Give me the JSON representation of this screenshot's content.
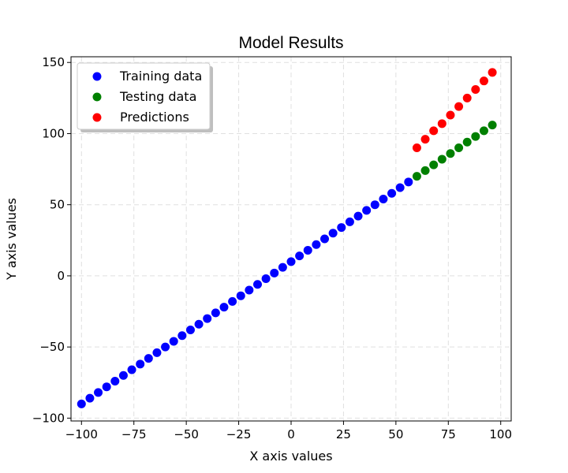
{
  "chart_data": {
    "type": "scatter",
    "title": "Model Results",
    "xlabel": "X axis values",
    "ylabel": "Y axis values",
    "xlim": [
      -105,
      105
    ],
    "ylim": [
      -102,
      154
    ],
    "xticks": [
      -100,
      -75,
      -50,
      -25,
      0,
      25,
      50,
      75,
      100
    ],
    "yticks": [
      -100,
      -50,
      0,
      50,
      100,
      150
    ],
    "xtick_labels": [
      "−100",
      "−75",
      "−50",
      "−25",
      "0",
      "25",
      "50",
      "75",
      "100"
    ],
    "ytick_labels": [
      "−100",
      "−50",
      "0",
      "50",
      "100",
      "150"
    ],
    "grid": true,
    "legend": "top-left",
    "series": [
      {
        "name": "Training data",
        "color": "#0000ff",
        "x": [
          -100,
          -96,
          -92,
          -88,
          -84,
          -80,
          -76,
          -72,
          -68,
          -64,
          -60,
          -56,
          -52,
          -48,
          -44,
          -40,
          -36,
          -32,
          -28,
          -24,
          -20,
          -16,
          -12,
          -8,
          -4,
          0,
          4,
          8,
          12,
          16,
          20,
          24,
          28,
          32,
          36,
          40,
          44,
          48,
          52,
          56
        ],
        "y": [
          -90,
          -86,
          -82,
          -78,
          -74,
          -70,
          -66,
          -62,
          -58,
          -54,
          -50,
          -46,
          -42,
          -38,
          -34,
          -30,
          -26,
          -22,
          -18,
          -14,
          -10,
          -6,
          -2,
          2,
          6,
          10,
          14,
          18,
          22,
          26,
          30,
          34,
          38,
          42,
          46,
          50,
          54,
          58,
          62,
          66
        ]
      },
      {
        "name": "Testing data",
        "color": "#008000",
        "x": [
          60,
          64,
          68,
          72,
          76,
          80,
          84,
          88,
          92,
          96
        ],
        "y": [
          70,
          74,
          78,
          82,
          86,
          90,
          94,
          98,
          102,
          106
        ]
      },
      {
        "name": "Predictions",
        "color": "#ff0000",
        "x": [
          60,
          64,
          68,
          72,
          76,
          80,
          84,
          88,
          92,
          96
        ],
        "y": [
          90,
          96,
          102,
          107,
          113,
          119,
          125,
          131,
          137,
          143
        ]
      }
    ]
  }
}
